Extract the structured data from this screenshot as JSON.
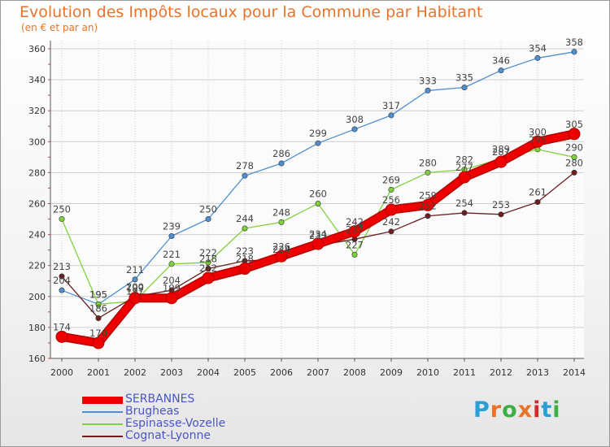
{
  "header": {
    "title": "Evolution des Impôts locaux pour la Commune par Habitant",
    "subtitle": "(en € et par an)"
  },
  "logo": {
    "text": "Proxiti"
  },
  "colors": {
    "title": "#e8732a",
    "legend_text": "#4a55c8",
    "grid": "#cfcfcf"
  },
  "chart_data": {
    "type": "line",
    "title": "Evolution des Impôts locaux pour la Commune par Habitant",
    "ylabel": "(en € et par an)",
    "xlabel": "",
    "x": [
      "2000",
      "2001",
      "2002",
      "2003",
      "2004",
      "2005",
      "2006",
      "2007",
      "2008",
      "2009",
      "2010",
      "2011",
      "2012",
      "2013",
      "2014"
    ],
    "ylim": [
      160,
      360
    ],
    "yticks": [
      160,
      180,
      200,
      220,
      240,
      260,
      280,
      300,
      320,
      340,
      360
    ],
    "grid": true,
    "legend_position": "bottom-left",
    "series": [
      {
        "name": "Brugheas",
        "color": "#4f8fcf",
        "values": [
          204,
          195,
          211,
          239,
          250,
          278,
          286,
          299,
          308,
          317,
          333,
          335,
          346,
          354,
          358
        ],
        "labels": [
          "204",
          "195",
          "211",
          "239",
          "250",
          "278",
          "286",
          "299",
          "308",
          "317",
          "333",
          "335",
          "346",
          "354",
          "358"
        ]
      },
      {
        "name": "Espinasse-Vozelle",
        "color": "#7fd23c",
        "values": [
          250,
          195,
          197,
          221,
          222,
          244,
          248,
          260,
          227,
          269,
          280,
          282,
          289,
          295,
          290
        ],
        "labels": [
          "250",
          "195",
          "197",
          "221",
          "222",
          "244",
          "248",
          "260",
          "227",
          "269",
          "280",
          "282",
          "289",
          "295",
          "290"
        ]
      },
      {
        "name": "Cognat-Lyonne",
        "color": "#6b1f1f",
        "values": [
          213,
          186,
          200,
          204,
          218,
          223,
          224,
          233,
          237,
          242,
          252,
          254,
          253,
          261,
          280
        ],
        "labels": [
          "213",
          "186",
          "200",
          "204",
          "218",
          "223",
          "224",
          "233",
          "237",
          "242",
          "252",
          "254",
          "253",
          "261",
          "280"
        ]
      },
      {
        "name": "SERBANNES",
        "color": "#ee0000",
        "values": [
          174,
          170,
          199,
          199,
          212,
          218,
          226,
          234,
          242,
          256,
          259,
          277,
          287,
          300,
          305
        ],
        "labels": [
          "174",
          "170",
          "199",
          "199",
          "212",
          "218",
          "226",
          "234",
          "242",
          "256",
          "259",
          "277",
          "287",
          "300",
          "305"
        ]
      }
    ],
    "legend_order": [
      "SERBANNES",
      "Brugheas",
      "Espinasse-Vozelle",
      "Cognat-Lyonne"
    ]
  }
}
